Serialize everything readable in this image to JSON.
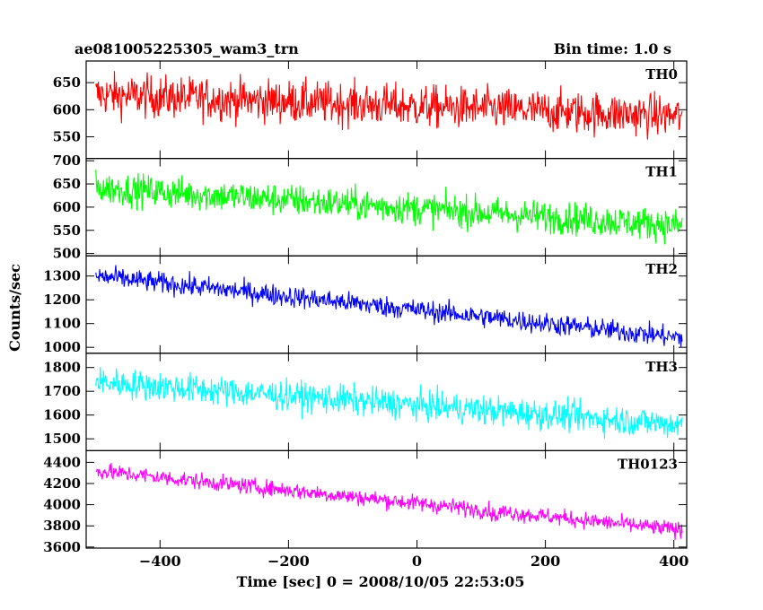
{
  "header": {
    "title": "ae081005225305_wam3_trn",
    "bin_time": "Bin time: 1.0 s"
  },
  "chart_data": {
    "type": "line",
    "ylabel": "Counts/sec",
    "xlabel": "Time [sec] 0 = 2008/10/05 22:53:05",
    "xlim": [
      -515,
      420
    ],
    "x_ticks": [
      -400,
      -200,
      0,
      200,
      400
    ],
    "x_tick_labels": [
      "−400",
      "−200",
      "0",
      "200",
      "400"
    ],
    "x_range_data": [
      -500,
      413
    ],
    "panels": [
      {
        "name": "TH0",
        "color": "#ff0000",
        "ylim": [
          510,
          690
        ],
        "yticks": [
          550,
          600,
          650
        ],
        "trend_start": 628,
        "trend_end": 588,
        "noise": 28,
        "feature": {
          "x": 122,
          "value": 640
        }
      },
      {
        "name": "TH1",
        "color": "#00ff00",
        "ylim": [
          495,
          705
        ],
        "yticks": [
          500,
          550,
          600,
          650,
          700
        ],
        "trend_start": 642,
        "trend_end": 560,
        "noise": 25
      },
      {
        "name": "TH2",
        "color": "#0000ff",
        "ylim": [
          975,
          1385
        ],
        "yticks": [
          1000,
          1100,
          1200,
          1300
        ],
        "trend_start": 1300,
        "trend_end": 1040,
        "noise": 32
      },
      {
        "name": "TH3",
        "color": "#00ffff",
        "ylim": [
          1450,
          1860
        ],
        "yticks": [
          1500,
          1600,
          1700,
          1800
        ],
        "trend_start": 1740,
        "trend_end": 1560,
        "noise": 45
      },
      {
        "name": "TH0123",
        "color": "#ff00ff",
        "ylim": [
          3590,
          4510
        ],
        "yticks": [
          3600,
          3800,
          4000,
          4200,
          4400
        ],
        "trend_start": 4320,
        "trend_end": 3760,
        "noise": 55,
        "feature": {
          "x": 122,
          "value": 4000
        }
      }
    ]
  }
}
